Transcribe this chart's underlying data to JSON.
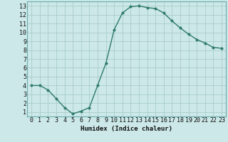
{
  "x": [
    0,
    1,
    2,
    3,
    4,
    5,
    6,
    7,
    8,
    9,
    10,
    11,
    12,
    13,
    14,
    15,
    16,
    17,
    18,
    19,
    20,
    21,
    22,
    23
  ],
  "y": [
    4.0,
    4.0,
    3.5,
    2.5,
    1.5,
    0.8,
    1.1,
    1.5,
    4.0,
    6.5,
    10.3,
    12.2,
    12.9,
    13.0,
    12.8,
    12.7,
    12.2,
    11.3,
    10.5,
    9.8,
    9.2,
    8.8,
    8.3,
    8.2
  ],
  "line_color": "#2d7a6a",
  "marker_color": "#2d7a6a",
  "bg_color": "#cce8e8",
  "grid_color": "#aacccc",
  "xlabel": "Humidex (Indice chaleur)",
  "xlim": [
    -0.5,
    23.5
  ],
  "ylim": [
    0.5,
    13.5
  ],
  "xticks": [
    0,
    1,
    2,
    3,
    4,
    5,
    6,
    7,
    8,
    9,
    10,
    11,
    12,
    13,
    14,
    15,
    16,
    17,
    18,
    19,
    20,
    21,
    22,
    23
  ],
  "yticks": [
    1,
    2,
    3,
    4,
    5,
    6,
    7,
    8,
    9,
    10,
    11,
    12,
    13
  ],
  "xlabel_fontsize": 6.5,
  "tick_fontsize": 6.0,
  "line_width": 1.0,
  "marker_size": 2.5
}
